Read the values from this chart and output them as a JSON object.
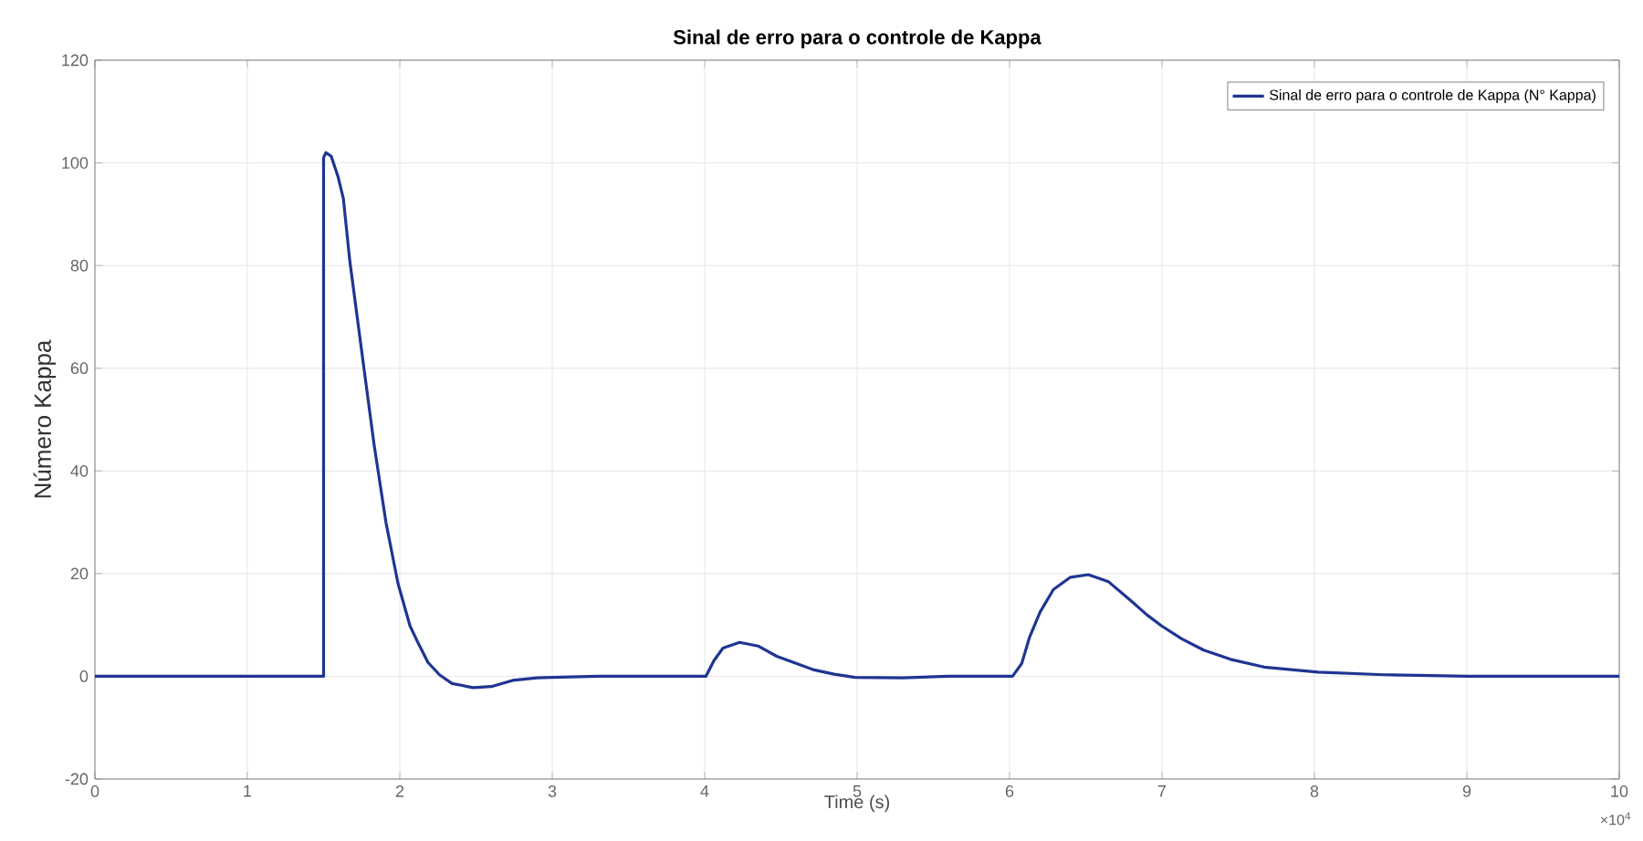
{
  "chart_data": {
    "type": "line",
    "title": "Sinal de erro para o controle de Kappa",
    "xlabel": "Time (s)",
    "ylabel": "Número Kappa",
    "xlim": [
      0,
      10
    ],
    "ylim": [
      -20,
      120
    ],
    "xticks": [
      0,
      1,
      2,
      3,
      4,
      5,
      6,
      7,
      8,
      9,
      10
    ],
    "yticks": [
      -20,
      0,
      20,
      40,
      60,
      80,
      100,
      120
    ],
    "annotations": [
      "×10$^{4}$"
    ],
    "grid": true,
    "legend": "top right",
    "line_style": "solid",
    "marker": "none",
    "series": [
      {
        "name": "Sinal de erro para o controle de Kappa (N° Kappa)",
        "color": "#1f3592",
        "x": [
          0,
          1.5,
          1.5,
          1.515,
          1.55,
          1.594,
          1.63,
          1.672,
          1.751,
          1.83,
          1.909,
          1.988,
          2.067,
          2.12,
          2.185,
          2.26,
          2.343,
          2.48,
          2.6,
          2.74,
          2.9,
          3.0,
          3.3,
          4.0,
          4.008,
          4.06,
          4.12,
          4.229,
          4.35,
          4.473,
          4.6,
          4.71,
          4.85,
          4.986,
          5.3,
          5.6,
          6.0,
          6.02,
          6.08,
          6.13,
          6.2,
          6.288,
          6.4,
          6.517,
          6.65,
          6.801,
          6.9,
          6.998,
          7.13,
          7.274,
          7.45,
          7.669,
          8.024,
          8.458,
          9.006,
          10
        ],
        "values": [
          0,
          0,
          101,
          102,
          101.3,
          97.4,
          93,
          80.9,
          63.1,
          45.4,
          30,
          18.1,
          9.8,
          6.5,
          2.7,
          0.3,
          -1.4,
          -2.2,
          -2.0,
          -0.8,
          -0.3,
          -0.2,
          0,
          0,
          0,
          3,
          5.5,
          6.6,
          5.9,
          3.9,
          2.5,
          1.3,
          0.4,
          -0.2,
          -0.3,
          0,
          0,
          0,
          2.5,
          7.5,
          12.5,
          16.9,
          19.3,
          19.8,
          18.4,
          14.6,
          12,
          9.8,
          7.3,
          5.1,
          3.3,
          1.8,
          0.8,
          0.3,
          0,
          0
        ]
      }
    ]
  }
}
